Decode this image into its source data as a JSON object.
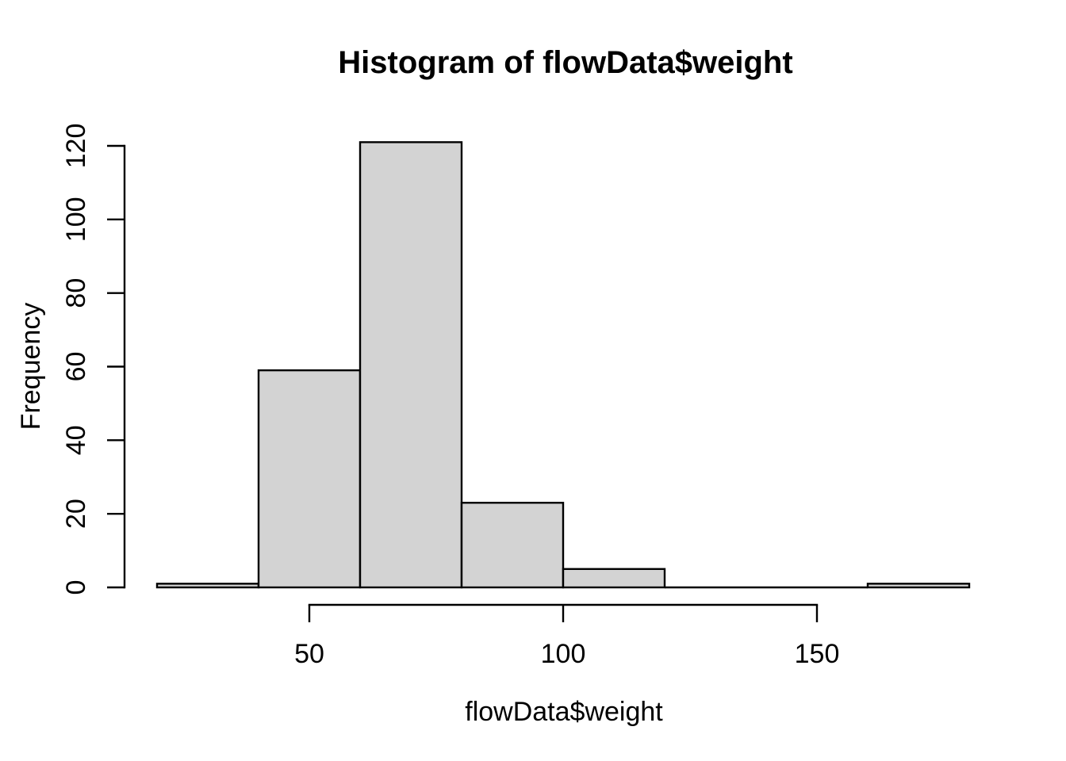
{
  "figure": {
    "background": "#ffffff"
  },
  "chart_data": {
    "type": "bar",
    "subtype": "histogram",
    "title": "Histogram of flowData$weight",
    "xlabel": "flowData$weight",
    "ylabel": "Frequency",
    "bins": [
      {
        "from": 20,
        "to": 40,
        "count": 1
      },
      {
        "from": 40,
        "to": 60,
        "count": 59
      },
      {
        "from": 60,
        "to": 80,
        "count": 121
      },
      {
        "from": 80,
        "to": 100,
        "count": 23
      },
      {
        "from": 100,
        "to": 120,
        "count": 5
      },
      {
        "from": 120,
        "to": 140,
        "count": 0
      },
      {
        "from": 140,
        "to": 160,
        "count": 0
      },
      {
        "from": 160,
        "to": 180,
        "count": 1
      }
    ],
    "x_ticks": [
      50,
      100,
      150
    ],
    "y_ticks": [
      0,
      20,
      40,
      60,
      80,
      100,
      120
    ],
    "xlim": [
      20,
      180
    ],
    "ylim": [
      0,
      121
    ],
    "grid": false,
    "legend_position": "none",
    "bar_fill": "#d3d3d3",
    "bar_border": "#000000",
    "axis_color": "#000000",
    "text_color": "#000000"
  }
}
